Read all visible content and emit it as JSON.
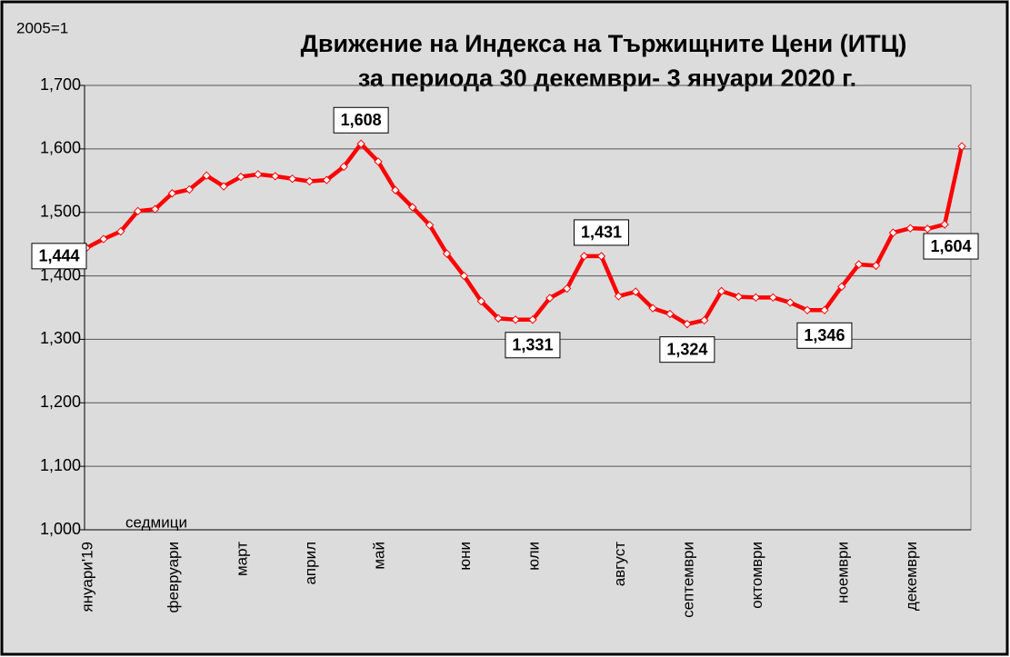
{
  "chart_data": {
    "type": "line",
    "title": [
      "Движение на Индекса на Тържищните Цени (ИТЦ)",
      "за периода 30 декември- 3 януари 2020 г."
    ],
    "y_unit": "2005=1",
    "x_label": "седмици",
    "categories": [
      "януари'19",
      null,
      null,
      null,
      null,
      "февруари",
      null,
      null,
      null,
      "март",
      null,
      null,
      null,
      "април",
      null,
      null,
      null,
      "май",
      null,
      null,
      null,
      null,
      "юни",
      null,
      null,
      null,
      "юли",
      null,
      null,
      null,
      null,
      "август",
      null,
      null,
      null,
      "септември",
      null,
      null,
      null,
      "октомври",
      null,
      null,
      null,
      null,
      "ноември",
      null,
      null,
      null,
      "декември",
      null,
      null,
      null
    ],
    "values": [
      1444,
      1458,
      1470,
      1502,
      1505,
      1530,
      1536,
      1558,
      1541,
      1556,
      1560,
      1557,
      1553,
      1549,
      1551,
      1572,
      1608,
      1580,
      1535,
      1508,
      1480,
      1435,
      1400,
      1360,
      1333,
      1331,
      1331,
      1365,
      1380,
      1431,
      1431,
      1368,
      1375,
      1349,
      1340,
      1324,
      1330,
      1376,
      1367,
      1366,
      1366,
      1358,
      1346,
      1346,
      1383,
      1418,
      1416,
      1468,
      1475,
      1474,
      1481,
      1604
    ],
    "value_labels": [
      "1,444",
      null,
      null,
      null,
      null,
      null,
      null,
      null,
      null,
      null,
      null,
      null,
      null,
      null,
      null,
      null,
      "1,608",
      null,
      null,
      null,
      null,
      null,
      null,
      null,
      null,
      null,
      "1,331",
      null,
      null,
      null,
      "1,431",
      null,
      null,
      null,
      null,
      "1,324",
      null,
      null,
      null,
      null,
      null,
      null,
      null,
      "1,346",
      null,
      null,
      null,
      null,
      null,
      null,
      null,
      "1,604"
    ],
    "color": "#ff0000",
    "ylim": [
      1000,
      1700
    ],
    "yticks": [
      {
        "value": 1000,
        "label": "1,000"
      },
      {
        "value": 1100,
        "label": "1,100"
      },
      {
        "value": 1200,
        "label": "1,200"
      },
      {
        "value": 1300,
        "label": "1,300"
      },
      {
        "value": 1400,
        "label": "1,400"
      },
      {
        "value": 1500,
        "label": "1,500"
      },
      {
        "value": 1600,
        "label": "1,600"
      },
      {
        "value": 1700,
        "label": "1,700"
      }
    ],
    "grid": true
  }
}
